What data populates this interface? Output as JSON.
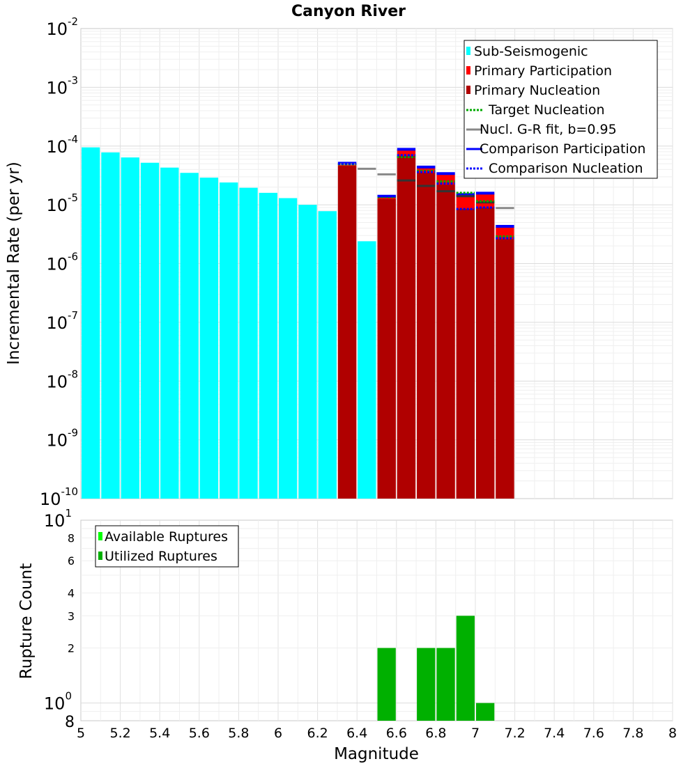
{
  "chart_data": [
    {
      "type": "bar",
      "title": "Canyon River",
      "ylabel": "Incremental Rate (per yr)",
      "xlabel": "",
      "xlim": [
        5,
        8
      ],
      "y_scale": "log",
      "ylim_exp": [
        -10,
        -2
      ],
      "y_tick_labels": [
        {
          "exp": -10,
          "base": "10",
          "sup": "-10"
        },
        {
          "exp": -9,
          "base": "10",
          "sup": "-9"
        },
        {
          "exp": -8,
          "base": "10",
          "sup": "-8"
        },
        {
          "exp": -7,
          "base": "10",
          "sup": "-7"
        },
        {
          "exp": -6,
          "base": "10",
          "sup": "-6"
        },
        {
          "exp": -5,
          "base": "10",
          "sup": "-5"
        },
        {
          "exp": -4,
          "base": "10",
          "sup": "-4"
        },
        {
          "exp": -3,
          "base": "10",
          "sup": "-3"
        },
        {
          "exp": -2,
          "base": "10",
          "sup": "-2"
        }
      ],
      "bar_width": 0.1,
      "series": [
        {
          "name": "Sub-Seismogenic",
          "kind": "bar",
          "color": "#00ffff",
          "x": [
            5.05,
            5.15,
            5.25,
            5.35,
            5.45,
            5.55,
            5.65,
            5.75,
            5.85,
            5.95,
            6.05,
            6.15,
            6.25,
            6.45
          ],
          "values": [
            9.5e-05,
            7.8e-05,
            6.4e-05,
            5.2e-05,
            4.3e-05,
            3.5e-05,
            2.9e-05,
            2.4e-05,
            1.95e-05,
            1.6e-05,
            1.3e-05,
            1e-05,
            7.8e-06,
            2.4e-06
          ]
        },
        {
          "name": "Primary Participation",
          "kind": "bar",
          "color": "#ff0000",
          "x": [
            6.35,
            6.55,
            6.65,
            6.75,
            6.85,
            6.95,
            7.05,
            7.15
          ],
          "values": [
            4.9e-05,
            1.35e-05,
            8.5e-05,
            4.3e-05,
            3.3e-05,
            1.5e-05,
            1.55e-05,
            4.2e-06
          ]
        },
        {
          "name": "Primary Nucleation",
          "kind": "bar",
          "color": "#b00000",
          "x": [
            6.35,
            6.55,
            6.65,
            6.75,
            6.85,
            6.95,
            7.05,
            7.15
          ],
          "values": [
            4.6e-05,
            1.25e-05,
            6.8e-05,
            3.5e-05,
            2.2e-05,
            8.5e-06,
            9e-06,
            2.6e-06
          ]
        },
        {
          "name": "Target Nucleation",
          "kind": "dotted",
          "color": "#00aa00",
          "x": [
            6.35,
            6.55,
            6.65,
            6.75,
            6.85,
            6.95,
            7.05,
            7.15
          ],
          "values": [
            4.9e-05,
            1.35e-05,
            6.5e-05,
            3.8e-05,
            2.5e-05,
            1.6e-05,
            1.15e-05,
            2.9e-06
          ]
        },
        {
          "name": "Nucl. G-R fit, b=0.95",
          "kind": "solid",
          "color": "#888888",
          "x": [
            6.35,
            6.45,
            6.55,
            6.65,
            6.75,
            6.85,
            6.95,
            7.05,
            7.15
          ],
          "values": [
            4.9e-05,
            4.1e-05,
            3.3e-05,
            2.6e-05,
            2.1e-05,
            1.7e-05,
            1.4e-05,
            1.1e-05,
            8.8e-06
          ]
        },
        {
          "name": "Comparison Participation",
          "kind": "solid",
          "color": "#0000ff",
          "x": [
            6.35,
            6.55,
            6.65,
            6.75,
            6.85,
            6.95,
            7.05,
            7.15
          ],
          "values": [
            5.1e-05,
            1.4e-05,
            8.8e-05,
            4.4e-05,
            3.4e-05,
            1.5e-05,
            1.58e-05,
            4.3e-06
          ]
        },
        {
          "name": "Comparison Nucleation",
          "kind": "dotted",
          "color": "#0000ff",
          "x": [
            6.35,
            6.55,
            6.65,
            6.75,
            6.85,
            6.95,
            7.05,
            7.15
          ],
          "values": [
            5e-05,
            1.4e-05,
            7e-05,
            3.6e-05,
            2.3e-05,
            8.5e-06,
            9e-06,
            2.7e-06
          ]
        }
      ],
      "legend": {
        "position": "top-right",
        "entries": [
          {
            "label": "Sub-Seismogenic",
            "style": "box",
            "color": "#00ffff"
          },
          {
            "label": "Primary Participation",
            "style": "box",
            "color": "#ff0000"
          },
          {
            "label": "Primary Nucleation",
            "style": "box",
            "color": "#b00000"
          },
          {
            "label": "Target Nucleation",
            "style": "dotted",
            "color": "#00aa00"
          },
          {
            "label": "Nucl. G-R fit, b=0.95",
            "style": "solid",
            "color": "#888888"
          },
          {
            "label": "Comparison Participation",
            "style": "solid",
            "color": "#0000ff"
          },
          {
            "label": "Comparison Nucleation",
            "style": "dotted",
            "color": "#0000ff"
          }
        ]
      }
    },
    {
      "type": "bar",
      "title": "",
      "ylabel": "Rupture Count",
      "xlabel": "Magnitude",
      "xlim": [
        5,
        8
      ],
      "x_ticks": [
        "5",
        "5.2",
        "5.4",
        "5.6",
        "5.8",
        "6",
        "6.2",
        "6.4",
        "6.6",
        "6.8",
        "7",
        "7.2",
        "7.4",
        "7.6",
        "7.8",
        "8"
      ],
      "y_scale": "log",
      "ylim": [
        0.8,
        10
      ],
      "y_minor_labels": [
        {
          "value": 8,
          "label": "8"
        },
        {
          "value": 6,
          "label": "6"
        },
        {
          "value": 4,
          "label": "4"
        },
        {
          "value": 3,
          "label": "3"
        },
        {
          "value": 2,
          "label": "2"
        }
      ],
      "y_major_labels": [
        {
          "value": 10,
          "base": "10",
          "sup": "1"
        },
        {
          "value": 1,
          "base": "10",
          "sup": "0"
        }
      ],
      "y_bottom_label": {
        "value": 0.8,
        "label": "8"
      },
      "bar_width": 0.1,
      "series": [
        {
          "name": "Utilized Ruptures",
          "kind": "bar",
          "color": "#00b000",
          "x": [
            6.55,
            6.75,
            6.85,
            6.95,
            7.05
          ],
          "values": [
            2,
            2,
            2,
            3,
            1
          ]
        }
      ],
      "legend": {
        "position": "top-left",
        "entries": [
          {
            "label": "Available Ruptures",
            "style": "box",
            "color": "#00ff00"
          },
          {
            "label": "Utilized Ruptures",
            "style": "box",
            "color": "#00b000"
          }
        ]
      }
    }
  ]
}
